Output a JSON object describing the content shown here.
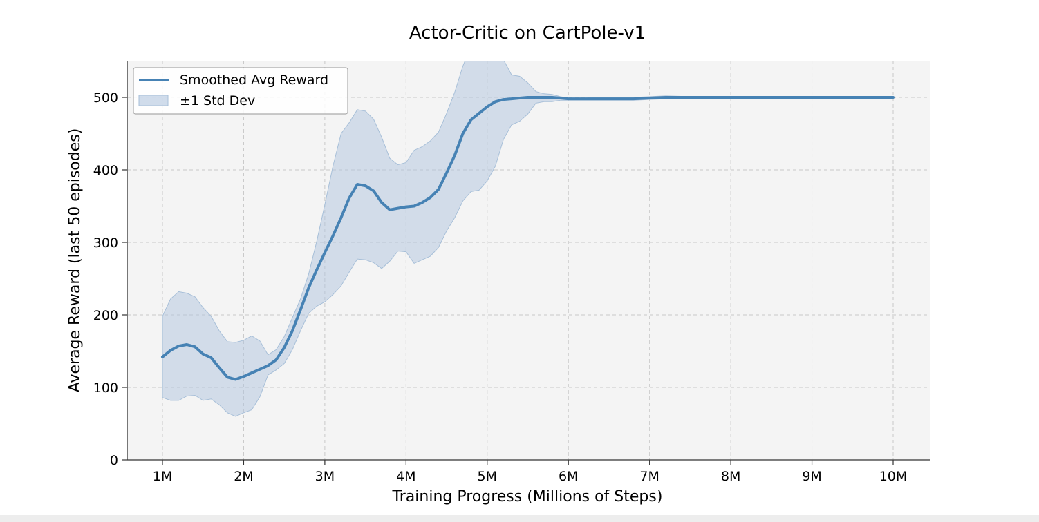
{
  "chart_data": {
    "type": "line",
    "title": "Actor-Critic on CartPole-v1",
    "xlabel": "Training Progress (Millions of Steps)",
    "ylabel": "Average Reward (last 50 episodes)",
    "xlim": [
      0.56,
      10.45
    ],
    "ylim": [
      0,
      550
    ],
    "x_ticks": [
      1,
      2,
      3,
      4,
      5,
      6,
      7,
      8,
      9,
      10
    ],
    "x_tick_labels": [
      "1M",
      "2M",
      "3M",
      "4M",
      "5M",
      "6M",
      "7M",
      "8M",
      "9M",
      "10M"
    ],
    "y_ticks": [
      0,
      100,
      200,
      300,
      400,
      500
    ],
    "y_tick_labels": [
      "0",
      "100",
      "200",
      "300",
      "400",
      "500"
    ],
    "grid": true,
    "legend_position": "upper-left",
    "colors": {
      "line": "#4682b4",
      "band_fill": "#b0c4de",
      "band_edge": "#a7bfd8",
      "plot_bg": "#f4f4f4",
      "grid": "#c8c8c8"
    },
    "series": [
      {
        "name": "Smoothed Avg Reward",
        "x": [
          1.0,
          1.1,
          1.2,
          1.3,
          1.4,
          1.5,
          1.6,
          1.7,
          1.8,
          1.9,
          2.0,
          2.1,
          2.2,
          2.3,
          2.4,
          2.5,
          2.6,
          2.7,
          2.8,
          2.9,
          3.0,
          3.1,
          3.2,
          3.3,
          3.4,
          3.5,
          3.6,
          3.7,
          3.8,
          3.9,
          4.0,
          4.1,
          4.2,
          4.3,
          4.4,
          4.5,
          4.6,
          4.7,
          4.8,
          4.9,
          5.0,
          5.1,
          5.2,
          5.3,
          5.4,
          5.5,
          5.6,
          5.7,
          5.8,
          5.9,
          6.0,
          6.2,
          6.4,
          6.6,
          6.8,
          7.0,
          7.2,
          7.5,
          8.0,
          9.0,
          10.0
        ],
        "values": [
          142,
          151,
          157,
          159,
          156,
          146,
          141,
          127,
          114,
          111,
          115,
          120,
          125,
          130,
          138,
          155,
          178,
          207,
          237,
          262,
          286,
          309,
          334,
          361,
          380,
          378,
          371,
          355,
          345,
          347,
          349,
          350,
          355,
          362,
          373,
          396,
          420,
          450,
          469,
          478,
          487,
          494,
          497,
          498,
          499,
          500,
          500,
          500,
          500,
          499,
          498,
          498,
          498,
          498,
          498,
          499,
          500,
          500,
          500,
          500,
          500
        ]
      },
      {
        "name": "±1 Std Dev",
        "x": [
          1.0,
          1.1,
          1.2,
          1.3,
          1.4,
          1.5,
          1.6,
          1.7,
          1.8,
          1.9,
          2.0,
          2.1,
          2.2,
          2.3,
          2.4,
          2.5,
          2.6,
          2.7,
          2.8,
          2.9,
          3.0,
          3.1,
          3.2,
          3.3,
          3.4,
          3.5,
          3.6,
          3.7,
          3.8,
          3.9,
          4.0,
          4.1,
          4.2,
          4.3,
          4.4,
          4.5,
          4.6,
          4.7,
          4.8,
          4.9,
          5.0,
          5.1,
          5.2,
          5.3,
          5.4,
          5.5,
          5.6,
          5.7,
          5.8,
          5.9,
          6.0,
          6.2,
          6.4,
          6.6,
          6.8,
          7.0,
          7.2,
          7.5,
          8.0,
          9.0,
          10.0
        ],
        "upper": [
          198,
          222,
          232,
          230,
          225,
          210,
          198,
          178,
          163,
          162,
          165,
          171,
          164,
          145,
          152,
          170,
          196,
          222,
          256,
          301,
          352,
          405,
          450,
          465,
          483,
          481,
          470,
          445,
          416,
          407,
          410,
          427,
          432,
          440,
          452,
          478,
          507,
          543,
          570,
          580,
          588,
          578,
          552,
          531,
          529,
          520,
          508,
          505,
          504,
          501,
          499,
          499,
          500,
          500,
          500,
          501,
          502,
          501,
          500,
          500,
          500
        ],
        "lower": [
          86,
          82,
          82,
          88,
          89,
          82,
          84,
          76,
          65,
          60,
          65,
          69,
          87,
          117,
          124,
          133,
          152,
          178,
          202,
          212,
          218,
          228,
          240,
          259,
          277,
          276,
          272,
          264,
          274,
          288,
          287,
          271,
          276,
          281,
          293,
          316,
          334,
          357,
          370,
          372,
          385,
          405,
          442,
          462,
          467,
          477,
          492,
          494,
          494,
          496,
          496,
          496,
          496,
          496,
          496,
          497,
          498,
          499,
          500,
          500,
          500
        ]
      }
    ]
  }
}
